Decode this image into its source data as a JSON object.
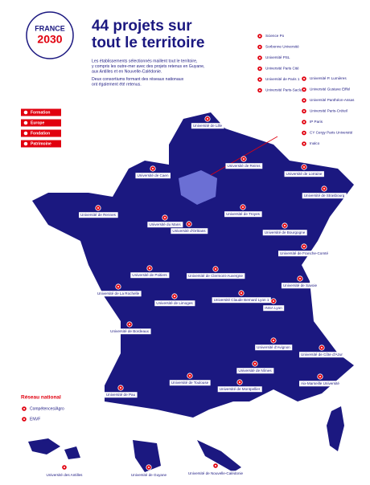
{
  "header": {
    "logo_top": "FRANCE",
    "logo_bottom": "2030",
    "title_lines": [
      "44 projets sur",
      "tout le territoire"
    ],
    "intro": [
      "Les établissements sélectionnés maillent tout le territoire,",
      "y compris les outre-mer avec des projets retenus en Guyane,",
      "aux Antilles et en Nouvelle-Calédonie.",
      "Deux consortiums formant des réseaux nationaux",
      "ont également été retenus."
    ]
  },
  "legend": [
    "Formation",
    "Europe",
    "Fondation",
    "Patrimoine"
  ],
  "paris_list": [
    "Science Po",
    "Sorbonne Université",
    "Université PSL",
    "Université Paris Cité",
    "Université de Paris 1",
    "Université Paris-Saclay",
    "Université P. Lumières",
    "Université Gustave Eiffel",
    "Université Panthéon-Assas",
    "Université Paris-Créteil",
    "IP Paris",
    "CY Cergy Paris Université",
    "Inalco"
  ],
  "map_labels": [
    "Université de Lille",
    "Université de Caen",
    "Université de Reims",
    "Université de Lorraine",
    "Université de Strasbourg",
    "Université de Rennes",
    "Université du Mans",
    "Université d'Orléans",
    "Université de Troyes",
    "Université de Bourgogne",
    "Université de Franche-Comté",
    "Université de Poitiers",
    "Université de Clermont-Auvergne",
    "Université de La Rochelle",
    "Université de Limoges",
    "Université Claude Bernard Lyon 1",
    "INSA Lyon",
    "Université de Savoie",
    "Université de Bordeaux",
    "Université d'Avignon",
    "Université de Côte d'Azur",
    "Université de Nîmes",
    "Université de Montpellier",
    "Aix-Marseille Université",
    "Université de Toulouse",
    "Université de Pau"
  ],
  "network": {
    "title": "Réseau national",
    "items": [
      "Compétences/Agro",
      "ENVF"
    ]
  },
  "overseas": [
    "Université des Antilles",
    "Université de Guyane",
    "Université de Nouvelle-Calédonie"
  ]
}
